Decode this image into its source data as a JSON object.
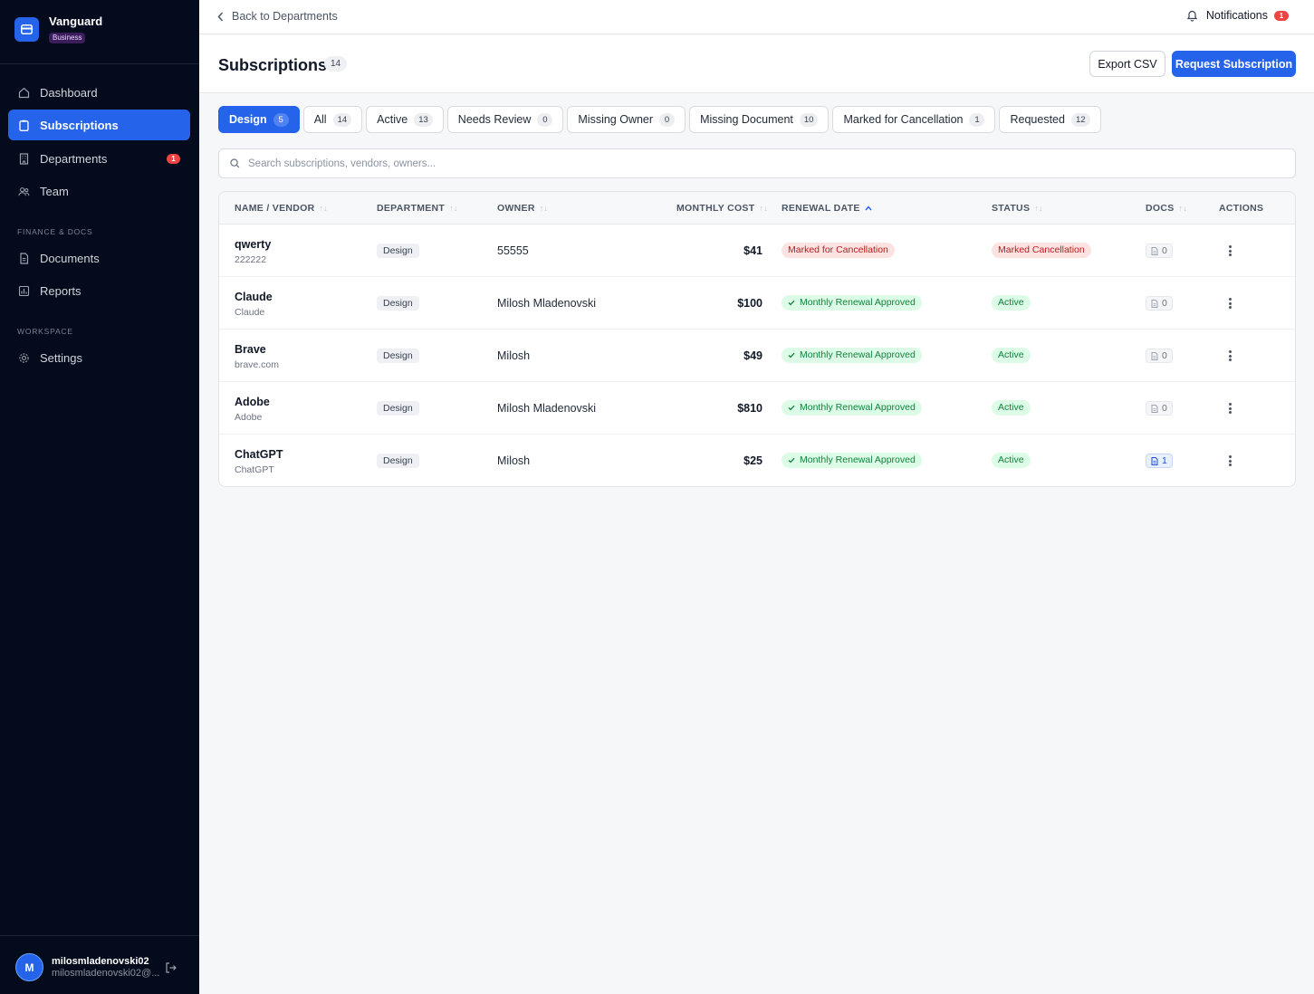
{
  "brand": {
    "name": "Vanguard",
    "plan": "Business"
  },
  "sidebar": {
    "items": [
      {
        "label": "Dashboard",
        "icon": "home-icon"
      },
      {
        "label": "Subscriptions",
        "icon": "clipboard-icon",
        "active": true
      },
      {
        "label": "Departments",
        "icon": "building-icon",
        "badge": "1"
      },
      {
        "label": "Team",
        "icon": "users-icon"
      }
    ],
    "finance_section": "FINANCE & DOCS",
    "finance_items": [
      {
        "label": "Documents",
        "icon": "document-icon"
      },
      {
        "label": "Reports",
        "icon": "bar-chart-icon"
      }
    ],
    "workspace_section": "WORKSPACE",
    "workspace_items": [
      {
        "label": "Settings",
        "icon": "gear-icon"
      }
    ]
  },
  "user": {
    "initial": "M",
    "name": "milosmladenovski02",
    "email": "milosmladenovski02@..."
  },
  "topbar": {
    "back_label": "Back to Departments",
    "notifications_label": "Notifications",
    "notifications_count": "1"
  },
  "header": {
    "title": "Subscriptions",
    "count": "14",
    "export_label": "Export CSV",
    "request_label": "Request Subscription"
  },
  "tabs": [
    {
      "label": "Design",
      "count": "5",
      "active": true
    },
    {
      "label": "All",
      "count": "14"
    },
    {
      "label": "Active",
      "count": "13"
    },
    {
      "label": "Needs Review",
      "count": "0"
    },
    {
      "label": "Missing Owner",
      "count": "0"
    },
    {
      "label": "Missing Document",
      "count": "10"
    },
    {
      "label": "Marked for Cancellation",
      "count": "1"
    },
    {
      "label": "Requested",
      "count": "12"
    }
  ],
  "search": {
    "placeholder": "Search subscriptions, vendors, owners...",
    "value": ""
  },
  "table": {
    "columns": [
      "NAME / VENDOR",
      "DEPARTMENT",
      "OWNER",
      "MONTHLY COST",
      "RENEWAL DATE",
      "STATUS",
      "DOCS",
      "ACTIONS"
    ],
    "rows": [
      {
        "name": "qwerty",
        "vendor": "222222",
        "department": "Design",
        "owner": "55555",
        "cost": "$41",
        "renewal": "Marked for Cancellation",
        "renewal_tone": "red",
        "status": "Marked Cancellation",
        "status_tone": "red",
        "docs": "0",
        "docs_tone": "gray"
      },
      {
        "name": "Claude",
        "vendor": "Claude",
        "department": "Design",
        "owner": "Milosh Mladenovski",
        "cost": "$100",
        "renewal": "Monthly Renewal Approved",
        "renewal_tone": "green",
        "status": "Active",
        "status_tone": "green",
        "docs": "0",
        "docs_tone": "gray"
      },
      {
        "name": "Brave",
        "vendor": "brave.com",
        "department": "Design",
        "owner": "Milosh",
        "cost": "$49",
        "renewal": "Monthly Renewal Approved",
        "renewal_tone": "green",
        "status": "Active",
        "status_tone": "green",
        "docs": "0",
        "docs_tone": "gray"
      },
      {
        "name": "Adobe",
        "vendor": "Adobe",
        "department": "Design",
        "owner": "Milosh Mladenovski",
        "cost": "$810",
        "renewal": "Monthly Renewal Approved",
        "renewal_tone": "green",
        "status": "Active",
        "status_tone": "green",
        "docs": "0",
        "docs_tone": "gray"
      },
      {
        "name": "ChatGPT",
        "vendor": "ChatGPT",
        "department": "Design",
        "owner": "Milosh",
        "cost": "$25",
        "renewal": "Monthly Renewal Approved",
        "renewal_tone": "green",
        "status": "Active",
        "status_tone": "green",
        "docs": "1",
        "docs_tone": "blue"
      }
    ]
  },
  "colors": {
    "accent": "#2563eb",
    "sidebar_bg": "#030b1c",
    "danger": "#ef4444",
    "success": "#15803d"
  }
}
